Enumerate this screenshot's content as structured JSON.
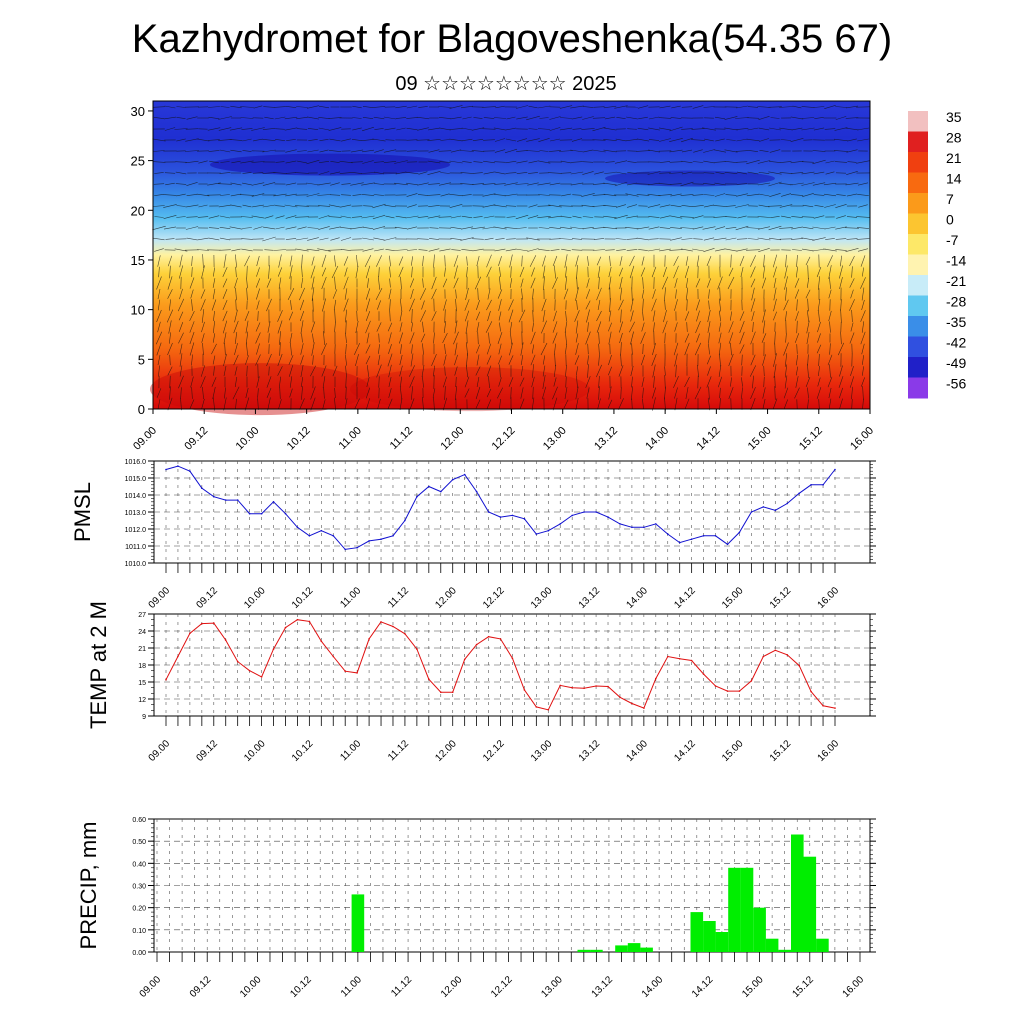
{
  "title": "Kazhydromet for Blagoveshenka(54.35 67)",
  "subtitle": "09 ☆☆☆☆☆☆☆☆ 2025",
  "chart_data": [
    {
      "type": "heatmap",
      "description_key": "temperature cross-section with wind barbs",
      "x_ticks": [
        "09.00",
        "09.12",
        "10.00",
        "10.12",
        "11.00",
        "11.12",
        "12.00",
        "12.12",
        "13.00",
        "13.12",
        "14.00",
        "14.12",
        "15.00",
        "15.12",
        "16.00"
      ],
      "y_ticks": [
        "0",
        "5",
        "10",
        "15",
        "20",
        "25",
        "30"
      ],
      "ylim": [
        0,
        31
      ],
      "colorbar_labels": [
        "35",
        "28",
        "21",
        "14",
        "7",
        "0",
        "-7",
        "-14",
        "-21",
        "-28",
        "-35",
        "-42",
        "-49",
        "-56"
      ],
      "colorbar_colors": [
        "#f2c0c0",
        "#e02020",
        "#f04010",
        "#f86a10",
        "#fb9a1a",
        "#fcc530",
        "#fde868",
        "#fff3b0",
        "#c8ecf8",
        "#60c8f0",
        "#3a8ee8",
        "#3050e0",
        "#2020c8",
        "#8a3ae8"
      ],
      "column_profile": {
        "bottom_temp": [
          30,
          32,
          28,
          33,
          30,
          26,
          24,
          22,
          18,
          20,
          22,
          24,
          22,
          26,
          28
        ]
      }
    },
    {
      "type": "line",
      "ylabel": "PMSL",
      "ylim": [
        1010.0,
        1016.0
      ],
      "y_ticks": [
        "1010.0",
        "1011.0",
        "1012.0",
        "1013.0",
        "1014.0",
        "1015.0",
        "1016.0"
      ],
      "x_ticks": [
        "09.00",
        "09.12",
        "10.00",
        "10.12",
        "11.00",
        "11.12",
        "12.00",
        "12.12",
        "13.00",
        "13.12",
        "14.00",
        "14.12",
        "15.00",
        "15.12",
        "16.00"
      ],
      "series_color": "#1010d0",
      "values": [
        1015.5,
        1015.7,
        1015.4,
        1014.4,
        1013.9,
        1013.7,
        1013.7,
        1012.9,
        1012.9,
        1013.6,
        1012.9,
        1012.1,
        1011.6,
        1011.9,
        1011.6,
        1010.8,
        1010.9,
        1011.3,
        1011.4,
        1011.6,
        1012.5,
        1013.9,
        1014.5,
        1014.2,
        1014.9,
        1015.2,
        1014.2,
        1013.0,
        1012.7,
        1012.8,
        1012.6,
        1011.7,
        1011.9,
        1012.3,
        1012.8,
        1013.0,
        1013.0,
        1012.7,
        1012.3,
        1012.1,
        1012.1,
        1012.3,
        1011.7,
        1011.2,
        1011.4,
        1011.6,
        1011.6,
        1011.1,
        1011.8,
        1013.0,
        1013.3,
        1013.1,
        1013.5,
        1014.1,
        1014.6,
        1014.6,
        1015.5
      ]
    },
    {
      "type": "line",
      "ylabel": "TEMP at 2 M",
      "ylim": [
        9,
        27
      ],
      "y_ticks": [
        "9",
        "12",
        "15",
        "18",
        "21",
        "24",
        "27"
      ],
      "x_ticks": [
        "09.00",
        "09.12",
        "10.00",
        "10.12",
        "11.00",
        "11.12",
        "12.00",
        "12.12",
        "13.00",
        "13.12",
        "14.00",
        "14.12",
        "15.00",
        "15.12",
        "16.00"
      ],
      "series_color": "#e01010",
      "values": [
        15.4,
        19.5,
        23.6,
        25.3,
        25.4,
        22.4,
        18.6,
        17.0,
        15.9,
        20.8,
        24.6,
        26.0,
        25.7,
        22.2,
        19.5,
        16.9,
        16.6,
        22.6,
        25.6,
        24.8,
        23.5,
        20.8,
        15.5,
        13.2,
        13.2,
        19.0,
        21.6,
        23.0,
        22.6,
        19.2,
        13.6,
        10.6,
        10.1,
        14.4,
        14.0,
        13.9,
        14.3,
        14.2,
        12.3,
        11.2,
        10.4,
        15.6,
        19.5,
        19.1,
        18.8,
        16.4,
        14.3,
        13.4,
        13.4,
        15.2,
        19.5,
        20.6,
        19.8,
        17.9,
        13.3,
        10.8,
        10.4
      ]
    },
    {
      "type": "bar",
      "ylabel": "PRECIP, mm",
      "ylim": [
        0,
        0.6
      ],
      "y_ticks": [
        "0.00",
        "0.10",
        "0.20",
        "0.30",
        "0.40",
        "0.50",
        "0.60"
      ],
      "x_ticks": [
        "09.00",
        "09.12",
        "10.00",
        "10.12",
        "11.00",
        "11.12",
        "12.00",
        "12.12",
        "13.00",
        "13.12",
        "14.00",
        "14.12",
        "15.00",
        "15.12",
        "16.00"
      ],
      "bar_color": "#00ee00",
      "values": [
        0,
        0,
        0,
        0,
        0,
        0,
        0,
        0,
        0,
        0,
        0,
        0,
        0,
        0,
        0,
        0,
        0.26,
        0,
        0,
        0,
        0,
        0,
        0,
        0,
        0,
        0,
        0,
        0,
        0,
        0,
        0,
        0,
        0,
        0,
        0.01,
        0.01,
        0,
        0.03,
        0.04,
        0.02,
        0,
        0,
        0,
        0.18,
        0.14,
        0.09,
        0.38,
        0.38,
        0.2,
        0.06,
        0.01,
        0.53,
        0.43,
        0.06,
        0,
        0,
        0
      ]
    }
  ]
}
